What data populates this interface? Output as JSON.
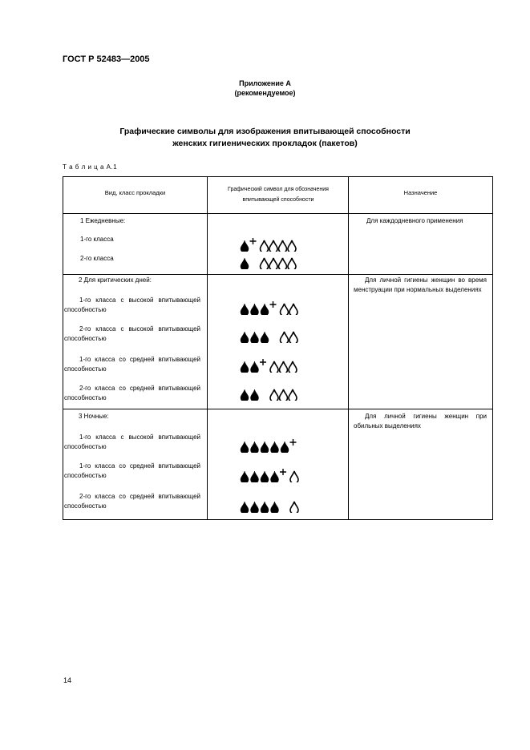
{
  "header": {
    "doc_code": "ГОСТ Р 52483—2005"
  },
  "annex": {
    "title": "Приложение А",
    "status": "(рекомендуемое)"
  },
  "heading": {
    "line1": "Графические символы для изображения впитывающей способности",
    "line2": "женских гигиенических прокладок (пакетов)"
  },
  "table_caption": "Т а б л и ц а  А.1",
  "table": {
    "columns": [
      "Вид, класс прокладки",
      "Графический символ для обозначения впитывающей способности",
      "Назначение"
    ],
    "sections": [
      {
        "title": "1  Ежедневные:",
        "purpose": "Для каждодневного применения",
        "rows": [
          {
            "label": "1-го класса",
            "symbol": {
              "filled": 1,
              "plus": true,
              "hollow": 4
            }
          },
          {
            "label": "2-го класса",
            "symbol": {
              "filled": 1,
              "plus": false,
              "hollow": 4
            }
          }
        ]
      },
      {
        "title": "2  Для критических дней:",
        "purpose": "Для личной гигиены женщин во время менструации при нормальных выделениях",
        "rows": [
          {
            "label": "1-го класса с высокой впитывающей способностью",
            "symbol": {
              "filled": 3,
              "plus": true,
              "hollow": 2
            }
          },
          {
            "label": "2-го класса с высокой впитывающей способностью",
            "symbol": {
              "filled": 3,
              "plus": false,
              "hollow": 2
            }
          },
          {
            "label": "1-го класса со средней впитывающей способностью",
            "symbol": {
              "filled": 2,
              "plus": true,
              "hollow": 3
            }
          },
          {
            "label": "2-го класса со средней впитывающей способностью",
            "symbol": {
              "filled": 2,
              "plus": false,
              "hollow": 3
            }
          }
        ]
      },
      {
        "title": "3  Ночные:",
        "purpose": "Для личной гигиены женщин при обильных выделениях",
        "rows": [
          {
            "label": "1-го класса с высокой впитывающей способностью",
            "symbol": {
              "filled": 5,
              "plus": true,
              "hollow": 0
            }
          },
          {
            "label": "1-го класса со средней впитывающей способностью",
            "symbol": {
              "filled": 4,
              "plus": true,
              "hollow": 1
            }
          },
          {
            "label": "2-го класса со средней впитывающей способностью",
            "symbol": {
              "filled": 4,
              "plus": false,
              "hollow": 1
            }
          }
        ]
      }
    ]
  },
  "page_number": "14"
}
